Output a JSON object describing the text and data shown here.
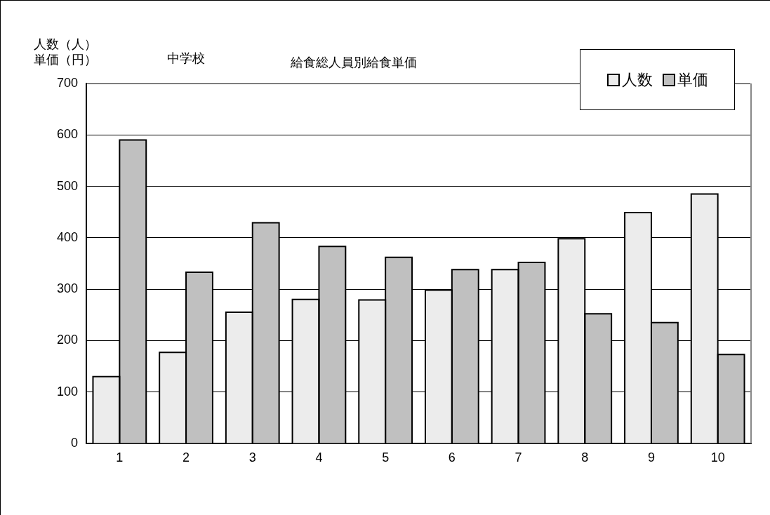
{
  "chart_data": {
    "type": "bar",
    "title": "給食総人員別給食単価",
    "subtitle": "中学校",
    "ylabel": "人数（人）単価（円）",
    "categories": [
      "1",
      "2",
      "3",
      "4",
      "5",
      "6",
      "7",
      "8",
      "9",
      "10"
    ],
    "series": [
      {
        "name": "人数",
        "color": "#ececec",
        "values": [
          130,
          177,
          255,
          280,
          279,
          298,
          338,
          398,
          449,
          485
        ]
      },
      {
        "name": "単価",
        "color": "#c0c0c0",
        "values": [
          590,
          333,
          429,
          383,
          362,
          338,
          352,
          252,
          235,
          173
        ]
      }
    ],
    "ylim": [
      0,
      700
    ],
    "yticks": [
      0,
      100,
      200,
      300,
      400,
      500,
      600,
      700
    ],
    "grid": "y",
    "legend": "top right"
  }
}
